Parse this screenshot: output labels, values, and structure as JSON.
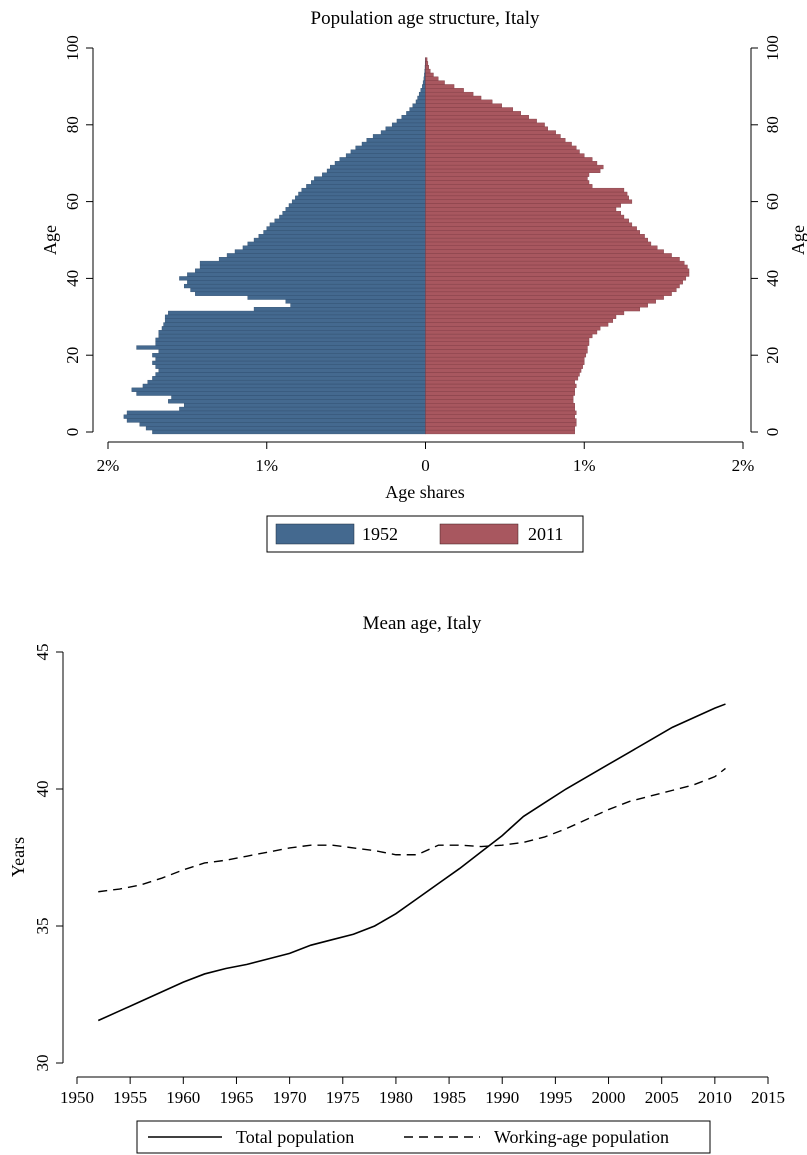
{
  "chart_data": [
    {
      "type": "bar",
      "orientation": "horizontal-pyramid",
      "title": "Population age structure, Italy",
      "xlabel": "Age shares",
      "ylabel": "Age",
      "ylabel_right": "Age",
      "xlim": [
        -2,
        2
      ],
      "ylim": [
        0,
        100
      ],
      "x_ticks": [
        "2%",
        "1%",
        "0",
        "1%",
        "2%"
      ],
      "y_ticks": [
        "0",
        "20",
        "40",
        "60",
        "80",
        "100"
      ],
      "grid": false,
      "legend_position": "bottom",
      "series": [
        {
          "name": "1952",
          "color": "#44698f",
          "side": "left",
          "ages": [
            0,
            1,
            2,
            3,
            4,
            5,
            6,
            7,
            8,
            9,
            10,
            11,
            12,
            13,
            14,
            15,
            16,
            17,
            18,
            19,
            20,
            21,
            22,
            23,
            24,
            25,
            26,
            27,
            28,
            29,
            30,
            31,
            32,
            33,
            34,
            35,
            36,
            37,
            38,
            39,
            40,
            41,
            42,
            43,
            44,
            45,
            46,
            47,
            48,
            49,
            50,
            51,
            52,
            53,
            54,
            55,
            56,
            57,
            58,
            59,
            60,
            61,
            62,
            63,
            64,
            65,
            66,
            67,
            68,
            69,
            70,
            71,
            72,
            73,
            74,
            75,
            76,
            77,
            78,
            79,
            80,
            81,
            82,
            83,
            84,
            85,
            86,
            87,
            88,
            89,
            90,
            91,
            92,
            93,
            94,
            95,
            96,
            97
          ],
          "values": [
            1.72,
            1.76,
            1.8,
            1.88,
            1.9,
            1.88,
            1.55,
            1.52,
            1.62,
            1.6,
            1.82,
            1.85,
            1.78,
            1.75,
            1.72,
            1.7,
            1.68,
            1.7,
            1.72,
            1.7,
            1.72,
            1.68,
            1.82,
            1.7,
            1.7,
            1.68,
            1.68,
            1.66,
            1.65,
            1.64,
            1.64,
            1.62,
            1.08,
            0.85,
            0.88,
            1.12,
            1.45,
            1.48,
            1.52,
            1.5,
            1.55,
            1.5,
            1.45,
            1.42,
            1.42,
            1.3,
            1.25,
            1.2,
            1.15,
            1.12,
            1.08,
            1.05,
            1.02,
            1.0,
            0.98,
            0.95,
            0.92,
            0.9,
            0.88,
            0.86,
            0.84,
            0.82,
            0.8,
            0.78,
            0.75,
            0.72,
            0.7,
            0.65,
            0.62,
            0.6,
            0.57,
            0.54,
            0.5,
            0.47,
            0.44,
            0.4,
            0.37,
            0.33,
            0.28,
            0.25,
            0.21,
            0.18,
            0.15,
            0.12,
            0.1,
            0.08,
            0.06,
            0.05,
            0.04,
            0.03,
            0.02,
            0.015,
            0.01,
            0.007,
            0.005,
            0.003,
            0.002,
            0.001
          ]
        },
        {
          "name": "2011",
          "color": "#a8575f",
          "side": "right",
          "ages": [
            0,
            1,
            2,
            3,
            4,
            5,
            6,
            7,
            8,
            9,
            10,
            11,
            12,
            13,
            14,
            15,
            16,
            17,
            18,
            19,
            20,
            21,
            22,
            23,
            24,
            25,
            26,
            27,
            28,
            29,
            30,
            31,
            32,
            33,
            34,
            35,
            36,
            37,
            38,
            39,
            40,
            41,
            42,
            43,
            44,
            45,
            46,
            47,
            48,
            49,
            50,
            51,
            52,
            53,
            54,
            55,
            56,
            57,
            58,
            59,
            60,
            61,
            62,
            63,
            64,
            65,
            66,
            67,
            68,
            69,
            70,
            71,
            72,
            73,
            74,
            75,
            76,
            77,
            78,
            79,
            80,
            81,
            82,
            83,
            84,
            85,
            86,
            87,
            88,
            89,
            90,
            91,
            92,
            93,
            94,
            95,
            96,
            97
          ],
          "values": [
            0.94,
            0.94,
            0.95,
            0.95,
            0.94,
            0.95,
            0.94,
            0.94,
            0.93,
            0.93,
            0.94,
            0.94,
            0.95,
            0.94,
            0.96,
            0.97,
            0.98,
            0.99,
            1.0,
            1.0,
            1.01,
            1.02,
            1.02,
            1.03,
            1.03,
            1.05,
            1.08,
            1.1,
            1.15,
            1.18,
            1.2,
            1.25,
            1.35,
            1.4,
            1.45,
            1.5,
            1.55,
            1.58,
            1.6,
            1.62,
            1.64,
            1.66,
            1.66,
            1.65,
            1.63,
            1.6,
            1.55,
            1.5,
            1.46,
            1.42,
            1.4,
            1.38,
            1.35,
            1.33,
            1.3,
            1.28,
            1.25,
            1.23,
            1.2,
            1.23,
            1.3,
            1.28,
            1.27,
            1.25,
            1.05,
            1.03,
            1.02,
            1.03,
            1.1,
            1.12,
            1.08,
            1.05,
            1.0,
            0.97,
            0.95,
            0.92,
            0.88,
            0.85,
            0.82,
            0.77,
            0.75,
            0.7,
            0.65,
            0.6,
            0.55,
            0.48,
            0.42,
            0.35,
            0.3,
            0.24,
            0.18,
            0.12,
            0.08,
            0.05,
            0.03,
            0.02,
            0.015,
            0.01
          ]
        }
      ]
    },
    {
      "type": "line",
      "title": "Mean age, Italy",
      "xlabel": "",
      "ylabel": "Years",
      "xlim": [
        1950,
        2015
      ],
      "ylim": [
        30,
        45
      ],
      "x_ticks": [
        "1950",
        "1955",
        "1960",
        "1965",
        "1970",
        "1975",
        "1980",
        "1985",
        "1990",
        "1995",
        "2000",
        "2005",
        "2010",
        "2015"
      ],
      "y_ticks": [
        "30",
        "35",
        "40",
        "45"
      ],
      "grid": false,
      "legend_position": "bottom",
      "x": [
        1952,
        1954,
        1956,
        1958,
        1960,
        1962,
        1964,
        1966,
        1968,
        1970,
        1972,
        1974,
        1976,
        1978,
        1980,
        1982,
        1984,
        1986,
        1988,
        1990,
        1992,
        1994,
        1996,
        1998,
        2000,
        2002,
        2004,
        2006,
        2008,
        2010,
        2011
      ],
      "series": [
        {
          "name": "Total population",
          "style": "solid",
          "values": [
            31.55,
            31.9,
            32.25,
            32.6,
            32.95,
            33.25,
            33.45,
            33.6,
            33.8,
            34.0,
            34.3,
            34.5,
            34.7,
            35.0,
            35.45,
            36.0,
            36.55,
            37.1,
            37.7,
            38.3,
            39.0,
            39.5,
            40.0,
            40.45,
            40.9,
            41.35,
            41.8,
            42.25,
            42.6,
            42.95,
            43.1
          ]
        },
        {
          "name": "Working-age population",
          "style": "dashed",
          "values": [
            36.25,
            36.35,
            36.5,
            36.75,
            37.05,
            37.3,
            37.4,
            37.55,
            37.7,
            37.85,
            37.95,
            37.95,
            37.85,
            37.75,
            37.6,
            37.6,
            37.95,
            37.95,
            37.9,
            37.95,
            38.05,
            38.25,
            38.55,
            38.9,
            39.25,
            39.55,
            39.75,
            39.95,
            40.15,
            40.45,
            40.75
          ]
        }
      ]
    }
  ]
}
